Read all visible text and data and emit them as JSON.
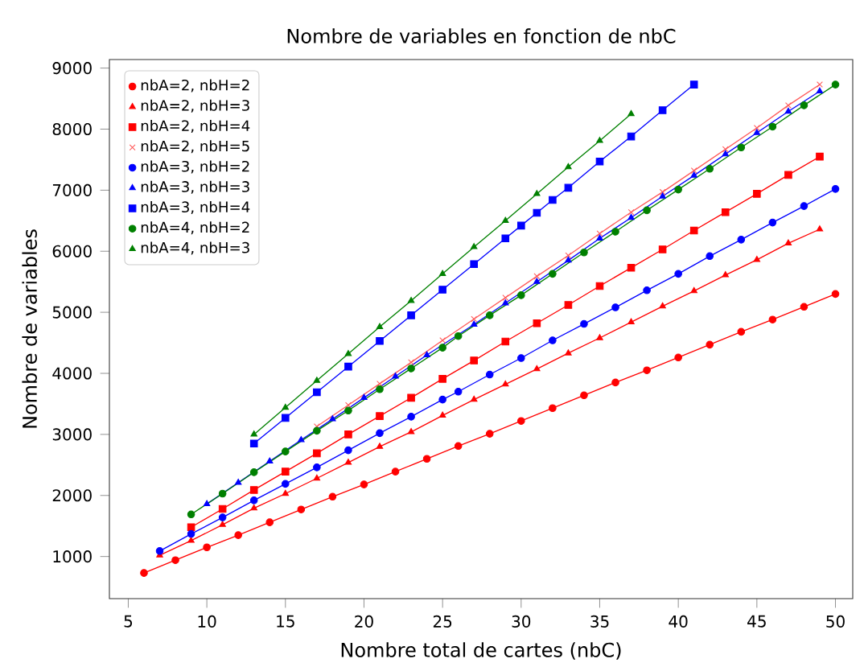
{
  "chart_data": {
    "type": "line",
    "title": "Nombre de variables en fonction de nbC",
    "xlabel": "Nombre total de cartes (nbC)",
    "ylabel": "Nombre de variables",
    "xlim": [
      3.8,
      51.1
    ],
    "ylim": [
      310,
      9140
    ],
    "xticks": [
      5,
      10,
      15,
      20,
      25,
      30,
      35,
      40,
      45,
      50
    ],
    "yticks": [
      1000,
      2000,
      3000,
      4000,
      5000,
      6000,
      7000,
      8000,
      9000
    ],
    "grid": false,
    "legend": "top left",
    "line_style": "solid",
    "series": [
      {
        "name": "nbA=2, nbH=2",
        "color": "#ff0000",
        "marker": "circle",
        "x": [
          6,
          8,
          10,
          12,
          14,
          16,
          18,
          20,
          22,
          24,
          26,
          28,
          30,
          32,
          34,
          36,
          38,
          40,
          42,
          44,
          46,
          48,
          50
        ],
        "values": [
          730,
          940,
          1150,
          1350,
          1560,
          1770,
          1980,
          2180,
          2390,
          2600,
          2810,
          3010,
          3220,
          3430,
          3640,
          3850,
          4050,
          4260,
          4470,
          4680,
          4880,
          5090,
          5300
        ]
      },
      {
        "name": "nbA=2, nbH=3",
        "color": "#ff0000",
        "marker": "triangle",
        "x": [
          7,
          9,
          11,
          13,
          15,
          17,
          19,
          21,
          23,
          25,
          27,
          29,
          31,
          33,
          35,
          37,
          39,
          41,
          43,
          45,
          47,
          49
        ],
        "values": [
          1020,
          1260,
          1520,
          1790,
          2030,
          2280,
          2540,
          2800,
          3040,
          3310,
          3570,
          3820,
          4070,
          4330,
          4580,
          4840,
          5100,
          5350,
          5610,
          5860,
          6130,
          6360
        ]
      },
      {
        "name": "nbA=2, nbH=4",
        "color": "#ff0000",
        "marker": "square",
        "x": [
          9,
          11,
          13,
          15,
          17,
          19,
          21,
          23,
          25,
          27,
          29,
          31,
          33,
          35,
          37,
          39,
          41,
          43,
          45,
          47,
          49
        ],
        "values": [
          1480,
          1780,
          2090,
          2390,
          2690,
          3000,
          3300,
          3600,
          3910,
          4210,
          4520,
          4820,
          5120,
          5430,
          5730,
          6030,
          6340,
          6640,
          6940,
          7250,
          7550
        ]
      },
      {
        "name": "nbA=2, nbH=5",
        "color": "#ff5a5a",
        "marker": "cross",
        "x": [
          17,
          19,
          21,
          23,
          25,
          27,
          29,
          31,
          33,
          35,
          37,
          39,
          41,
          43,
          45,
          47,
          49
        ],
        "values": [
          3130,
          3480,
          3830,
          4180,
          4540,
          4890,
          5240,
          5590,
          5930,
          6290,
          6640,
          6970,
          7320,
          7670,
          8020,
          8390,
          8730
        ]
      },
      {
        "name": "nbA=3, nbH=2",
        "color": "#0000ff",
        "marker": "circle",
        "x": [
          7,
          9,
          11,
          13,
          15,
          17,
          19,
          21,
          23,
          25,
          26,
          28,
          30,
          32,
          34,
          36,
          38,
          40,
          42,
          44,
          46,
          48,
          50
        ],
        "values": [
          1090,
          1370,
          1640,
          1920,
          2190,
          2460,
          2740,
          3020,
          3290,
          3570,
          3700,
          3980,
          4250,
          4540,
          4810,
          5080,
          5360,
          5630,
          5920,
          6190,
          6470,
          6740,
          7020
        ]
      },
      {
        "name": "nbA=3, nbH=3",
        "color": "#0000ff",
        "marker": "triangle",
        "x": [
          10,
          12,
          14,
          16,
          18,
          20,
          22,
          24,
          27,
          29,
          31,
          33,
          35,
          37,
          39,
          41,
          43,
          45,
          47,
          49
        ],
        "values": [
          1860,
          2210,
          2560,
          2910,
          3250,
          3600,
          3950,
          4300,
          4800,
          5150,
          5500,
          5850,
          6210,
          6550,
          6900,
          7240,
          7590,
          7940,
          8290,
          8620
        ]
      },
      {
        "name": "nbA=3, nbH=4",
        "color": "#0000ff",
        "marker": "square",
        "x": [
          13,
          15,
          17,
          19,
          21,
          23,
          25,
          27,
          29,
          30,
          31,
          32,
          33,
          35,
          37,
          39,
          41
        ],
        "values": [
          2850,
          3270,
          3690,
          4110,
          4530,
          4950,
          5370,
          5790,
          6210,
          6420,
          6630,
          6840,
          7040,
          7470,
          7880,
          8310,
          8730
        ]
      },
      {
        "name": "nbA=4, nbH=2",
        "color": "#008000",
        "marker": "circle",
        "x": [
          9,
          11,
          13,
          15,
          17,
          19,
          21,
          23,
          25,
          26,
          28,
          30,
          32,
          34,
          36,
          38,
          40,
          42,
          44,
          46,
          48,
          50
        ],
        "values": [
          1690,
          2030,
          2380,
          2720,
          3060,
          3390,
          3740,
          4080,
          4420,
          4610,
          4950,
          5280,
          5630,
          5980,
          6320,
          6670,
          7010,
          7350,
          7700,
          8040,
          8390,
          8730
        ]
      },
      {
        "name": "nbA=4, nbH=3",
        "color": "#008000",
        "marker": "triangle",
        "x": [
          13,
          15,
          17,
          19,
          21,
          23,
          25,
          27,
          29,
          31,
          33,
          35,
          37
        ],
        "values": [
          3000,
          3440,
          3880,
          4320,
          4760,
          5190,
          5630,
          6070,
          6500,
          6940,
          7380,
          7810,
          8250
        ]
      }
    ]
  }
}
